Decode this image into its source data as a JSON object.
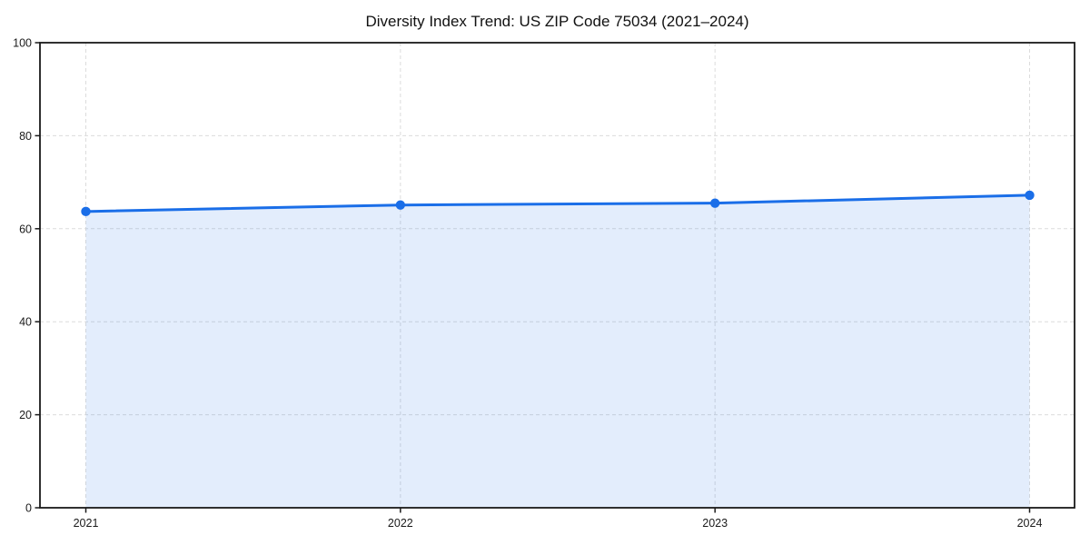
{
  "chart_data": {
    "type": "area",
    "title": "Diversity Index Trend: US ZIP Code 75034 (2021–2024)",
    "x": [
      "2021",
      "2022",
      "2023",
      "2024"
    ],
    "series": [
      {
        "name": "Diversity Index",
        "values": [
          63.7,
          65.1,
          65.5,
          67.2
        ]
      }
    ],
    "xlabel": "",
    "ylabel": "",
    "ylim": [
      0,
      100
    ],
    "yticks": [
      0,
      20,
      40,
      60,
      80,
      100
    ],
    "grid": true,
    "grid_style": "dashed",
    "legend_position": "none",
    "colors": {
      "line": "#1a6ee8",
      "fill": "#e8f1fd",
      "grid": "#dcdcdc",
      "spine": "#1a1a1a",
      "tick_text": "#1a1a1a",
      "background": "#ffffff"
    }
  }
}
